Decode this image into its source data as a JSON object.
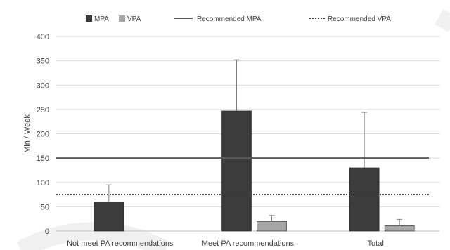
{
  "chart_data": {
    "type": "bar",
    "categories": [
      "Not meet PA recommendations",
      "Meet PA recommendations",
      "Total"
    ],
    "series": [
      {
        "name": "MPA",
        "values": [
          60,
          247,
          130
        ],
        "error_upper": [
          95,
          352,
          244
        ],
        "color": "#3b3b3b"
      },
      {
        "name": "VPA",
        "values": [
          0,
          20,
          11
        ],
        "error_upper": [
          0,
          32,
          24
        ],
        "color": "#a6a6a6"
      }
    ],
    "reference_lines": [
      {
        "name": "Recommended MPA",
        "value": 150,
        "style": "solid",
        "color": "#595959"
      },
      {
        "name": "Recommended VPA",
        "value": 75,
        "style": "dotted",
        "color": "#3b3b3b"
      }
    ],
    "title": "",
    "xlabel": "",
    "ylabel": "Min / Week",
    "ylim": [
      0,
      400
    ],
    "yticks": [
      0,
      50,
      100,
      150,
      200,
      250,
      300,
      350,
      400
    ],
    "grid": true,
    "legend_position": "top"
  }
}
